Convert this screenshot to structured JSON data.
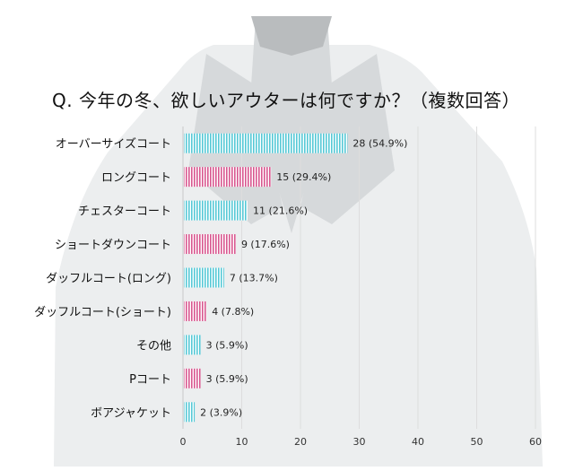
{
  "colors": {
    "cyan": "#56c9d6",
    "pink": "#d8578f",
    "grid": "#dddddd",
    "coat_light": "#eceeef",
    "coat_mid": "#d6d9db",
    "coat_dark": "#b9bcbe"
  },
  "background_icon": "coat-silhouette",
  "chart_data": {
    "type": "bar",
    "orientation": "horizontal",
    "title": "Q. 今年の冬、欲しいアウターは何ですか？（複数回答）",
    "categories": [
      "オーバーサイズコート",
      "ロングコート",
      "チェスターコート",
      "ショートダウンコート",
      "ダッフルコート(ロング)",
      "ダッフルコート(ショート)",
      "その他",
      "Pコート",
      "ボアジャケット"
    ],
    "values": [
      28,
      15,
      11,
      9,
      7,
      4,
      3,
      3,
      2
    ],
    "percents": [
      "54.9%",
      "29.4%",
      "21.6%",
      "17.6%",
      "13.7%",
      "7.8%",
      "5.9%",
      "5.9%",
      "3.9%"
    ],
    "data_labels": [
      "28 (54.9%)",
      "15 (29.4%)",
      "11 (21.6%)",
      "9 (17.6%)",
      "7 (13.7%)",
      "4 (7.8%)",
      "3 (5.9%)",
      "3 (5.9%)",
      "2 (3.9%)"
    ],
    "bar_colors": [
      "cyan",
      "pink",
      "cyan",
      "pink",
      "cyan",
      "pink",
      "cyan",
      "pink",
      "cyan"
    ],
    "x_ticks": [
      0,
      10,
      20,
      30,
      40,
      50,
      60
    ],
    "xlim": [
      0,
      60
    ],
    "grid": true
  }
}
